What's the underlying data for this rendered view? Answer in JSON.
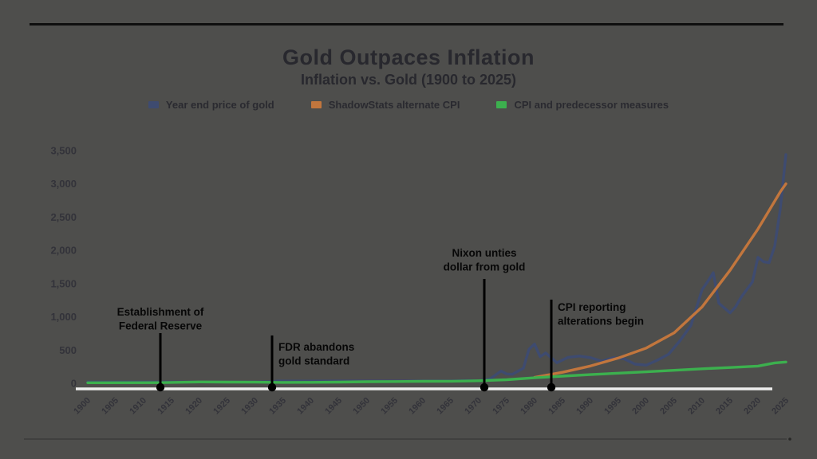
{
  "page": {
    "background": "#4e4e4c",
    "top_rule_color": "#0e0e0e",
    "baseline_color": "#ededed",
    "annotation_color": "#000000",
    "title_color": "#28282e",
    "tick_color": "#33333a"
  },
  "header": {
    "title": "Gold Outpaces Inflation",
    "subtitle": "Inflation vs. Gold (1900 to 2025)"
  },
  "chart_data": {
    "type": "line",
    "title": "Gold Outpaces Inflation",
    "subtitle": "Inflation vs. Gold (1900 to 2025)",
    "xlabel": "",
    "ylabel": "",
    "xlim": [
      1900,
      2025
    ],
    "ylim": [
      0,
      3500
    ],
    "grid": false,
    "legend_position": "top",
    "x_ticks": [
      1900,
      1905,
      1910,
      1915,
      1920,
      1925,
      1930,
      1935,
      1940,
      1945,
      1950,
      1955,
      1960,
      1965,
      1970,
      1975,
      1980,
      1985,
      1990,
      1995,
      2000,
      2005,
      2010,
      2015,
      2020,
      2025
    ],
    "y_ticks": [
      0,
      500,
      1000,
      1500,
      2000,
      2500,
      3000,
      3500
    ],
    "y_tick_labels": [
      "0",
      "500",
      "1,000",
      "1,500",
      "2,000",
      "2,500",
      "3,000",
      "3,500"
    ],
    "series": [
      {
        "name": "Year end price of gold",
        "color": "#3e4b70",
        "x": [
          1900,
          1905,
          1910,
          1915,
          1920,
          1925,
          1930,
          1933,
          1934,
          1940,
          1945,
          1950,
          1955,
          1960,
          1965,
          1968,
          1970,
          1972,
          1974,
          1975,
          1976,
          1978,
          1979,
          1980,
          1981,
          1982,
          1984,
          1986,
          1988,
          1990,
          1992,
          1994,
          1996,
          1998,
          2000,
          2002,
          2004,
          2006,
          2008,
          2010,
          2011,
          2012,
          2013,
          2015,
          2016,
          2017,
          2019,
          2020,
          2021,
          2022,
          2023,
          2024,
          2025
        ],
        "values": [
          20.7,
          20.7,
          20.7,
          20.7,
          20.7,
          20.7,
          20.7,
          26,
          35,
          34,
          35,
          35,
          35,
          35,
          35,
          42,
          37,
          65,
          184,
          140,
          135,
          226,
          512,
          590,
          400,
          457,
          309,
          391,
          410,
          386,
          333,
          383,
          369,
          288,
          273,
          348,
          438,
          636,
          870,
          1410,
          1531,
          1664,
          1204,
          1060,
          1151,
          1296,
          1523,
          1895,
          1829,
          1814,
          2063,
          2625,
          3440
        ]
      },
      {
        "name": "ShadowStats alternate CPI",
        "color": "#c2763d",
        "x": [
          1980,
          1985,
          1990,
          1995,
          2000,
          2005,
          2010,
          2015,
          2020,
          2022,
          2024,
          2025
        ],
        "values": [
          90,
          165,
          260,
          380,
          530,
          760,
          1150,
          1700,
          2320,
          2600,
          2880,
          3000
        ]
      },
      {
        "name": "CPI and predecessor measures",
        "color": "#3cb04e",
        "x": [
          1900,
          1913,
          1920,
          1925,
          1930,
          1935,
          1940,
          1945,
          1950,
          1955,
          1960,
          1965,
          1970,
          1975,
          1980,
          1985,
          1990,
          1995,
          2000,
          2005,
          2010,
          2015,
          2020,
          2023,
          2025
        ],
        "values": [
          8.4,
          9.9,
          20,
          17.5,
          16.7,
          13.7,
          14,
          18,
          24.1,
          26.8,
          29.6,
          31.5,
          38.8,
          53.8,
          82.4,
          107.6,
          130.7,
          152.4,
          172.2,
          195.3,
          218.1,
          237,
          258.8,
          307,
          320
        ]
      }
    ],
    "annotations": [
      {
        "text": [
          "Establishment of",
          "Federal Reserve"
        ],
        "year": 1913,
        "align": "center",
        "line_top": 418,
        "text_y": 396
      },
      {
        "text": [
          "FDR abandons",
          "gold standard"
        ],
        "year": 1933,
        "align": "right",
        "line_top": 421,
        "text_y": 440
      },
      {
        "text": [
          "Nixon unties",
          "dollar from gold"
        ],
        "year": 1971,
        "align": "center",
        "line_top": 350,
        "text_y": 322
      },
      {
        "text": [
          "CPI reporting",
          "alterations begin"
        ],
        "year": 1983,
        "align": "right",
        "line_top": 376,
        "text_y": 390
      }
    ]
  }
}
